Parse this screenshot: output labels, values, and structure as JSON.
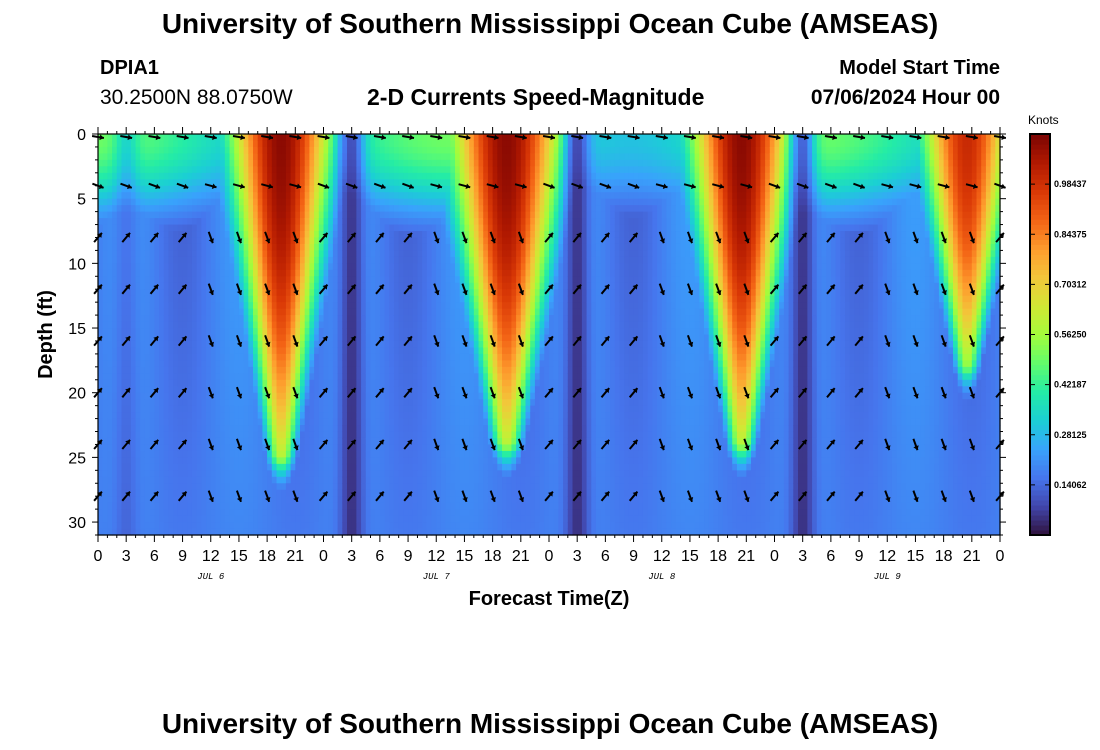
{
  "header": {
    "title": "University of Southern Mississippi Ocean Cube (AMSEAS)",
    "station_id": "DPIA1",
    "coordinates": "30.2500N  88.0750W",
    "plot_title": "2-D Currents Speed-Magnitude",
    "model_start_label": "Model Start Time",
    "model_start_value": "07/06/2024 Hour 00"
  },
  "footer": {
    "title": "University of Southern Mississippi Ocean Cube (AMSEAS)"
  },
  "colors": {
    "background": "#ffffff",
    "arrow": "#000000",
    "colormap": [
      "#30123b",
      "#4145ab",
      "#4675ed",
      "#39a2fc",
      "#1bcfd4",
      "#24eca6",
      "#61fc6c",
      "#a4fc3b",
      "#d1e834",
      "#f3c63a",
      "#fe9b2d",
      "#f36315",
      "#d93806",
      "#b11901",
      "#7a0403"
    ]
  },
  "chart_data": {
    "type": "heatmap",
    "title": "2-D Currents Speed-Magnitude",
    "xlabel": "Forecast Time(Z)",
    "ylabel": "Depth (ft)",
    "ylim": [
      0,
      31
    ],
    "y_reversed": true,
    "yticks": [
      0,
      5,
      10,
      15,
      20,
      25,
      30
    ],
    "x_hours_range": [
      0,
      96
    ],
    "xtick_labels": [
      "0",
      "3",
      "6",
      "9",
      "12",
      "15",
      "18",
      "21",
      "0",
      "3",
      "6",
      "9",
      "12",
      "15",
      "18",
      "21",
      "0",
      "3",
      "6",
      "9",
      "12",
      "15",
      "18",
      "21",
      "0",
      "3",
      "6",
      "9",
      "12",
      "15",
      "18",
      "21",
      "0"
    ],
    "date_labels": [
      {
        "label": "JUL 6",
        "hour": 12
      },
      {
        "label": "JUL 7",
        "hour": 36
      },
      {
        "label": "JUL 8",
        "hour": 60
      },
      {
        "label": "JUL 9",
        "hour": 84
      }
    ],
    "colorbar": {
      "label": "Knots",
      "min": 0,
      "max": 1.125,
      "ticks": [
        0.14062,
        0.28125,
        0.42187,
        0.5625,
        0.70312,
        0.84375,
        0.98437
      ],
      "tick_labels": [
        "0.14062",
        "0.28125",
        "0.42187",
        "0.56250",
        "0.70312",
        "0.84375",
        "0.98437"
      ]
    },
    "speed_maxima": [
      {
        "center_hour": 19.5,
        "peak_knots": 1.1,
        "surface_halfwidth_hours": 4.5,
        "bottom_depth_ft": 25
      },
      {
        "center_hour": 43.5,
        "peak_knots": 1.1,
        "surface_halfwidth_hours": 5,
        "bottom_depth_ft": 24
      },
      {
        "center_hour": 68.5,
        "peak_knots": 1.1,
        "surface_halfwidth_hours": 4.5,
        "bottom_depth_ft": 24
      },
      {
        "center_hour": 92.5,
        "peak_knots": 1.0,
        "surface_halfwidth_hours": 4,
        "bottom_depth_ft": 18
      }
    ],
    "series_note": "Surface current speed maxima near 1.1 knots during flood/ebb around 18-21Z daily, weakening with depth; minima (~0.1 knots) near 3Z each day.",
    "vector_depths_ft": [
      0,
      4,
      8,
      12,
      16,
      20,
      24,
      28
    ],
    "vector_hours_step": 3
  }
}
